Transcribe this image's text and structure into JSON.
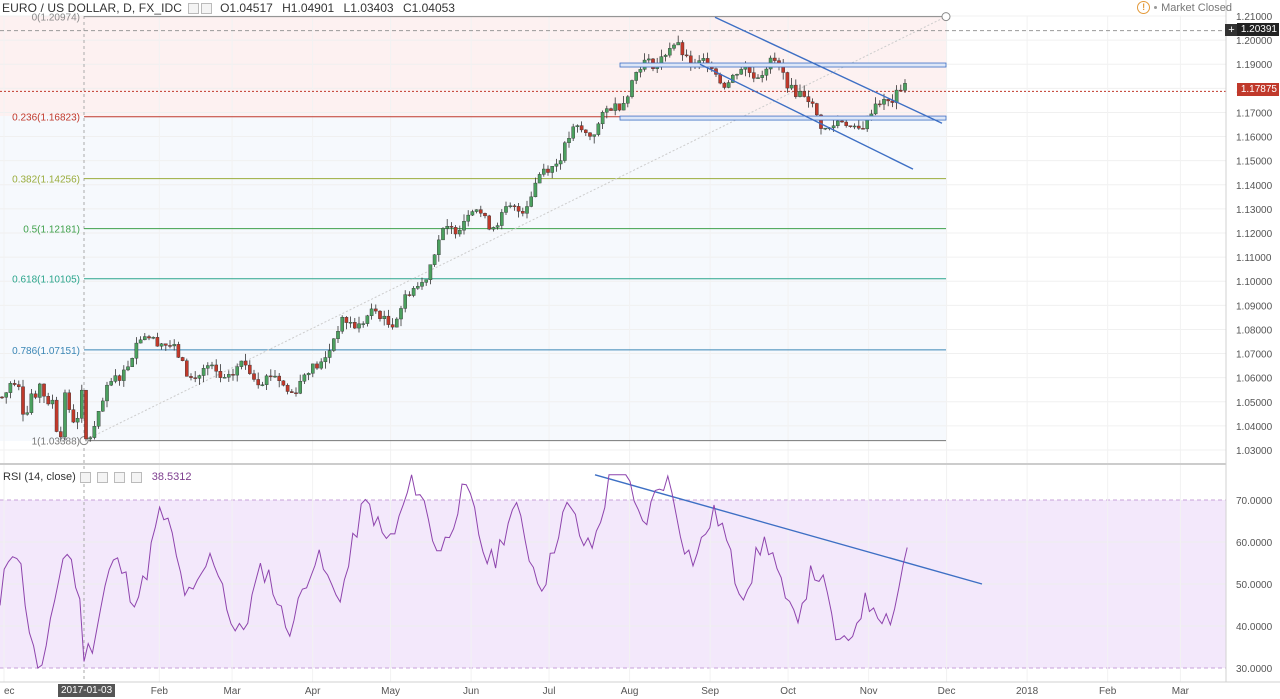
{
  "header": {
    "title": "EURO / US DOLLAR, D, FX_IDC",
    "open": "O1.04517",
    "high": "H1.04901",
    "low": "L1.03403",
    "close": "C1.04053"
  },
  "status": {
    "market_label": "Market Closed",
    "warn_icon": "!"
  },
  "price_badges": {
    "last": "1.20391",
    "current": "1.17875"
  },
  "plus_label": "+",
  "rsi": {
    "label": "RSI (14, close)",
    "value": "38.5312"
  },
  "date_badge": "2017-01-03",
  "colors": {
    "up": "#4ba05f",
    "down": "#c0392b",
    "channel": "#3d6fc4",
    "rsi": "#8e44ad",
    "rsi_band": "#f1e6fa",
    "fib_zone": "#fdeeee",
    "current": "#c0392b"
  },
  "price_axis": {
    "ticks": [
      "1.21000",
      "1.20000",
      "1.19000",
      "1.18000",
      "1.17000",
      "1.16000",
      "1.15000",
      "1.14000",
      "1.13000",
      "1.12000",
      "1.11000",
      "1.10000",
      "1.09000",
      "1.08000",
      "1.07000",
      "1.06000",
      "1.05000",
      "1.04000",
      "1.03000"
    ]
  },
  "rsi_axis": {
    "ticks": [
      "70.0000",
      "60.0000",
      "50.0000",
      "40.0000",
      "30.0000"
    ]
  },
  "time_axis": {
    "labels": [
      "ec",
      "Feb",
      "Mar",
      "Apr",
      "May",
      "Jun",
      "Jul",
      "Aug",
      "Sep",
      "Oct",
      "Nov",
      "Dec",
      "2018",
      "Feb",
      "Mar"
    ]
  },
  "fib_levels": [
    {
      "label": "0(1.20974)",
      "price": 1.20974,
      "color": "#888888"
    },
    {
      "label": "0.236(1.16823)",
      "price": 1.16823,
      "color": "#c0392b"
    },
    {
      "label": "0.382(1.14256)",
      "price": 1.14256,
      "color": "#9aac3c"
    },
    {
      "label": "0.5(1.12181)",
      "price": 1.12181,
      "color": "#3fa14b"
    },
    {
      "label": "0.618(1.10105)",
      "price": 1.10105,
      "color": "#2aa58c"
    },
    {
      "label": "0.786(1.07151)",
      "price": 1.07151,
      "color": "#3a86b5"
    },
    {
      "label": "1(1.03388)",
      "price": 1.03388,
      "color": "#777777"
    }
  ],
  "chart_data": {
    "type": "candlestick",
    "title": "EURO / US DOLLAR, D, FX_IDC",
    "ylim": [
      1.026,
      1.213
    ],
    "x": [
      "2017-01-03",
      "2017-02-01",
      "2017-03-01",
      "2017-04-01",
      "2017-05-01",
      "2017-06-01",
      "2017-07-01",
      "2017-08-01",
      "2017-09-01",
      "2017-10-01",
      "2017-11-01",
      "2017-11-15"
    ],
    "close": [
      1.0405,
      1.078,
      1.056,
      1.065,
      1.09,
      1.125,
      1.142,
      1.186,
      1.193,
      1.18,
      1.162,
      1.179
    ],
    "rsi_series": {
      "name": "RSI (14, close)",
      "ylim": [
        27,
        77
      ],
      "x": [
        "2017-01-03",
        "2017-02-01",
        "2017-03-01",
        "2017-04-01",
        "2017-05-01",
        "2017-06-01",
        "2017-07-01",
        "2017-08-01",
        "2017-09-01",
        "2017-10-01",
        "2017-11-01",
        "2017-11-15"
      ],
      "values": [
        40,
        60,
        45,
        48,
        68,
        64,
        57,
        74,
        60,
        50,
        38,
        57
      ]
    }
  }
}
